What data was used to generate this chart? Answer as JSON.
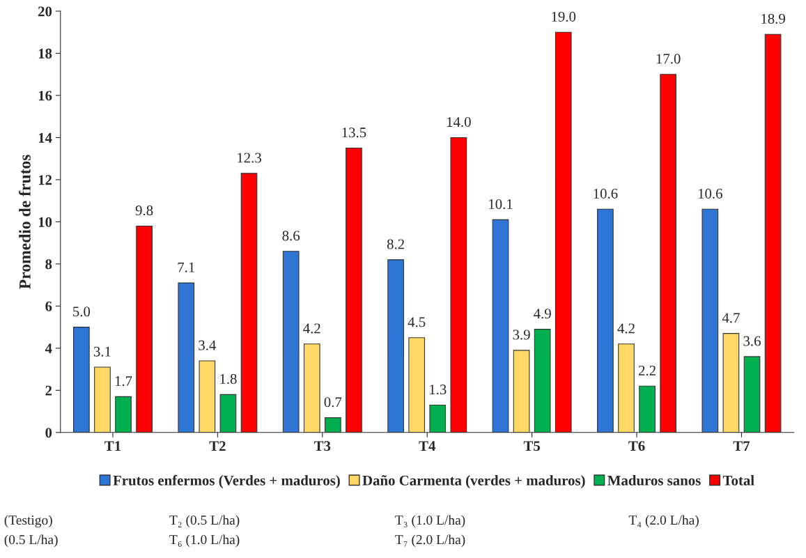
{
  "chart_data": {
    "type": "bar",
    "ylabel": "Promedio de frutos",
    "categories": [
      "T1",
      "T2",
      "T3",
      "T4",
      "T5",
      "T6",
      "T7"
    ],
    "series": [
      {
        "name": "Frutos enfermos (Verdes + maduros)",
        "color": "#2e75d6",
        "values": [
          5.0,
          7.1,
          8.6,
          8.2,
          10.1,
          10.6,
          10.6
        ],
        "value_labels": [
          "5.0",
          "7.1",
          "8.6",
          "8.2",
          "10.1",
          "10.6",
          "10.6"
        ]
      },
      {
        "name": "Daño Carmenta (verdes + maduros)",
        "color": "#ffd966",
        "values": [
          3.1,
          3.4,
          4.2,
          4.5,
          3.9,
          4.2,
          4.7
        ],
        "value_labels": [
          "3.1",
          "3.4",
          "4.2",
          "4.5",
          "3.9",
          "4.2",
          "4.7"
        ]
      },
      {
        "name": "Maduros sanos",
        "color": "#00b050",
        "values": [
          1.7,
          1.8,
          0.7,
          1.3,
          4.9,
          2.2,
          3.6
        ],
        "value_labels": [
          "1.7",
          "1.8",
          "0.7",
          "1.3",
          "4.9",
          "2.2",
          "3.6"
        ]
      },
      {
        "name": "Total",
        "color": "#ff0000",
        "values": [
          9.8,
          12.3,
          13.5,
          14.0,
          19.0,
          17.0,
          18.9
        ],
        "value_labels": [
          "9.8",
          "12.3",
          "13.5",
          "14.0",
          "19.0",
          "17.0",
          "18.9"
        ]
      }
    ],
    "ylim": [
      0,
      20
    ],
    "yticks": [
      0,
      2,
      4,
      6,
      8,
      10,
      12,
      14,
      16,
      18,
      20
    ],
    "legend": "bottom",
    "grid": false,
    "annotations": [
      "(Testigo)",
      "T₂ (0.5 L/ha)",
      "T₃ (1.0 L/ha)",
      "T₄ (2.0 L/ha)",
      "(0.5 L/ha)",
      "T₆ (1.0 L/ha)",
      "T₇ (2.0 L/ha)"
    ]
  }
}
